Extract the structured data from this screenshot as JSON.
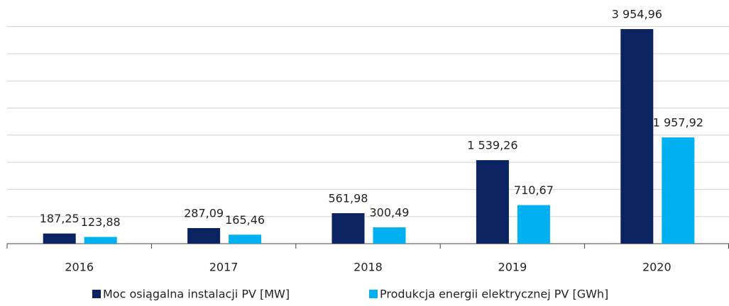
{
  "chart_data": {
    "type": "bar",
    "categories": [
      "2016",
      "2017",
      "2018",
      "2019",
      "2020"
    ],
    "series": [
      {
        "name": "Moc osiągalna instalacji PV [MW]",
        "color": "#0b2361",
        "values": [
          187.25,
          287.09,
          561.98,
          1539.26,
          3954.96
        ],
        "value_labels": [
          "187,25",
          "287,09",
          "561,98",
          "1 539,26",
          "3 954,96"
        ]
      },
      {
        "name": "Produkcja energii elektrycznej PV [GWh]",
        "color": "#00b0f0",
        "values": [
          123.88,
          165.46,
          300.49,
          710.67,
          1957.92
        ],
        "value_labels": [
          "123,88",
          "165,46",
          "300,49",
          "710,67",
          "1 957,92"
        ]
      }
    ],
    "ylim": [
      0,
      4000
    ],
    "yticks": [
      500,
      1000,
      1500,
      2000,
      2500,
      3000,
      3500,
      4000
    ],
    "grid": true
  }
}
